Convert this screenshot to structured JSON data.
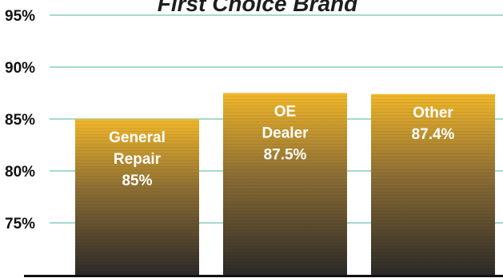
{
  "chart_data": {
    "type": "bar",
    "title": "First Choice Brand",
    "categories": [
      "General Repair",
      "OE Dealer",
      "Other"
    ],
    "values": [
      85,
      87.5,
      87.4
    ],
    "bar_labels": [
      [
        "General",
        "Repair",
        "85%"
      ],
      [
        "OE",
        "Dealer",
        "87.5%"
      ],
      [
        "Other",
        "87.4%"
      ]
    ],
    "yticks": [
      75,
      80,
      85,
      90,
      95
    ],
    "ytick_labels": [
      "75%",
      "80%",
      "85%",
      "90%",
      "95%"
    ],
    "ylim": [
      70.5,
      95.5
    ],
    "grid": true,
    "xlabel": "",
    "ylabel": ""
  },
  "colors": {
    "bar_top": "#f2b72a",
    "bar_mid": "#8d6e34",
    "bar_bottom": "#2c2a28",
    "grid": "#6ec4b2",
    "axis": "#111111",
    "label": "#ffffff",
    "tick_text": "#111111"
  }
}
